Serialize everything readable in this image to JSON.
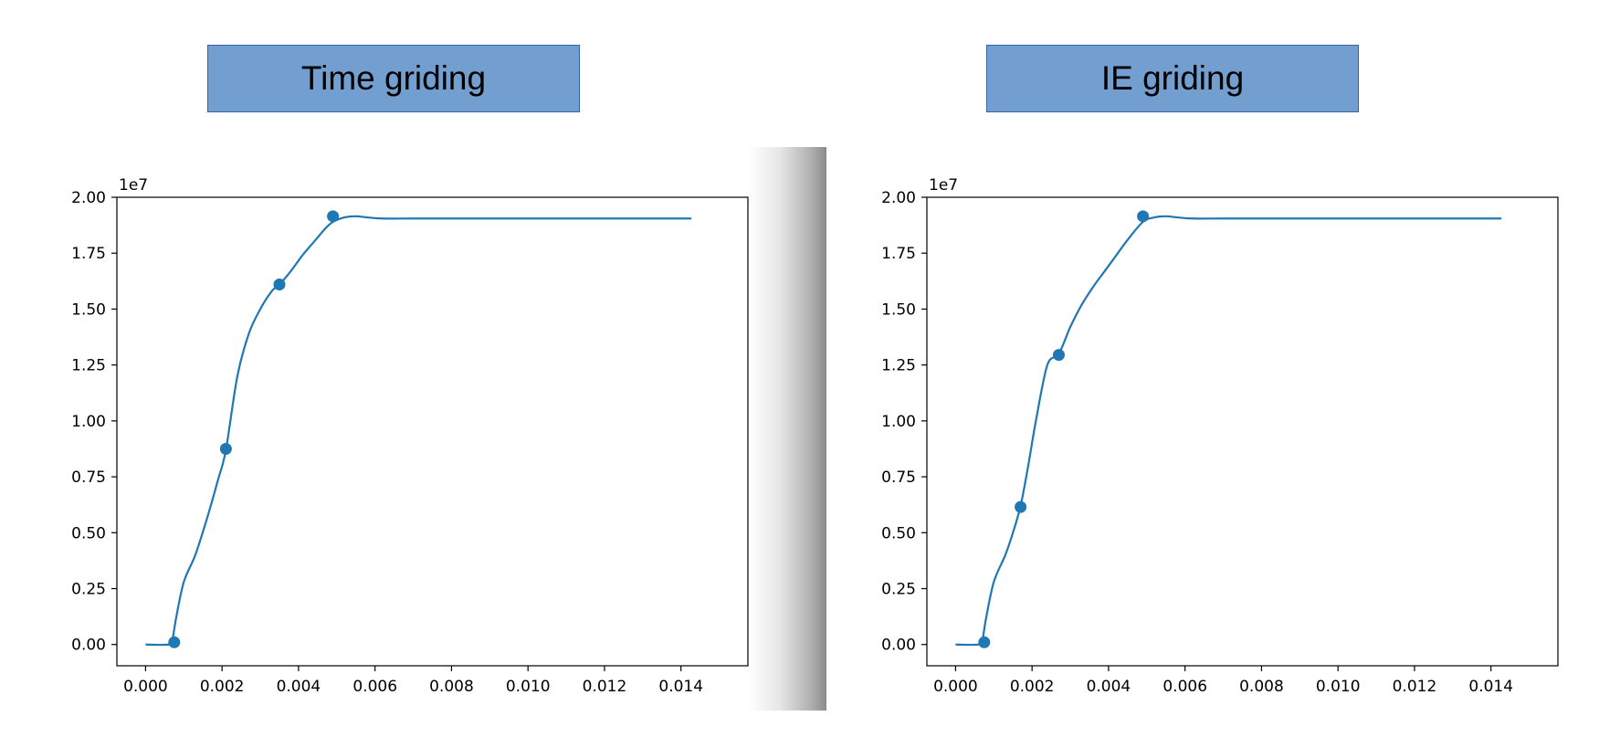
{
  "titles": {
    "left": "Time griding",
    "right": "IE griding"
  },
  "colors": {
    "title_bg": "#729fcf",
    "line": "#1f77b4",
    "axis": "#000000"
  },
  "chart_data": [
    {
      "type": "line",
      "title": "Time griding",
      "xlabel": "",
      "ylabel": "",
      "offset_label": "1e7",
      "xlim": [
        -0.00075,
        0.01575
      ],
      "ylim": [
        -0.095,
        2.0
      ],
      "xticks": [
        0.0,
        0.002,
        0.004,
        0.006,
        0.008,
        0.01,
        0.012,
        0.014
      ],
      "xtick_labels": [
        "0.000",
        "0.002",
        "0.004",
        "0.006",
        "0.008",
        "0.010",
        "0.012",
        "0.014"
      ],
      "yticks": [
        0.0,
        0.25,
        0.5,
        0.75,
        1.0,
        1.25,
        1.5,
        1.75,
        2.0
      ],
      "ytick_labels": [
        "0.00",
        "0.25",
        "0.50",
        "0.75",
        "1.00",
        "1.25",
        "1.50",
        "1.75",
        "2.00"
      ],
      "grid": false,
      "series": [
        {
          "x": [
            0.0,
            0.0006,
            0.0007,
            0.0008,
            0.001,
            0.0013,
            0.0016,
            0.0019,
            0.0021,
            0.0024,
            0.0027,
            0.003,
            0.0033,
            0.0035,
            0.0038,
            0.0041,
            0.0044,
            0.0047,
            0.0049,
            0.0052,
            0.0055,
            0.0058,
            0.0062,
            0.007,
            0.008,
            0.01,
            0.012,
            0.014,
            0.01425
          ],
          "values": [
            0.0,
            0.0,
            0.02,
            0.12,
            0.28,
            0.4,
            0.56,
            0.74,
            0.87,
            1.2,
            1.39,
            1.5,
            1.58,
            1.61,
            1.67,
            1.74,
            1.8,
            1.86,
            1.89,
            1.91,
            1.915,
            1.91,
            1.905,
            1.905,
            1.905,
            1.905,
            1.905,
            1.905,
            1.905
          ]
        }
      ],
      "markers": {
        "x": [
          0.00075,
          0.0021,
          0.0035,
          0.0049
        ],
        "values": [
          0.01,
          0.875,
          1.61,
          1.915
        ]
      }
    },
    {
      "type": "line",
      "title": "IE griding",
      "xlabel": "",
      "ylabel": "",
      "offset_label": "1e7",
      "xlim": [
        -0.00075,
        0.01575
      ],
      "ylim": [
        -0.095,
        2.0
      ],
      "xticks": [
        0.0,
        0.002,
        0.004,
        0.006,
        0.008,
        0.01,
        0.012,
        0.014
      ],
      "xtick_labels": [
        "0.000",
        "0.002",
        "0.004",
        "0.006",
        "0.008",
        "0.010",
        "0.012",
        "0.014"
      ],
      "yticks": [
        0.0,
        0.25,
        0.5,
        0.75,
        1.0,
        1.25,
        1.5,
        1.75,
        2.0
      ],
      "ytick_labels": [
        "0.00",
        "0.25",
        "0.50",
        "0.75",
        "1.00",
        "1.25",
        "1.50",
        "1.75",
        "2.00"
      ],
      "grid": false,
      "series": [
        {
          "x": [
            0.0,
            0.0006,
            0.0007,
            0.0008,
            0.001,
            0.0013,
            0.0015,
            0.0017,
            0.0019,
            0.0021,
            0.0024,
            0.0027,
            0.003,
            0.0033,
            0.0036,
            0.0039,
            0.0042,
            0.0045,
            0.0049,
            0.0052,
            0.0055,
            0.0058,
            0.0062,
            0.007,
            0.008,
            0.01,
            0.012,
            0.014,
            0.01425
          ],
          "values": [
            0.0,
            0.0,
            0.02,
            0.12,
            0.28,
            0.4,
            0.5,
            0.62,
            0.8,
            1.0,
            1.25,
            1.3,
            1.42,
            1.52,
            1.6,
            1.67,
            1.74,
            1.81,
            1.89,
            1.91,
            1.915,
            1.91,
            1.905,
            1.905,
            1.905,
            1.905,
            1.905,
            1.905,
            1.905
          ]
        }
      ],
      "markers": {
        "x": [
          0.00075,
          0.0017,
          0.0027,
          0.0049
        ],
        "values": [
          0.01,
          0.615,
          1.295,
          1.915
        ]
      }
    }
  ]
}
